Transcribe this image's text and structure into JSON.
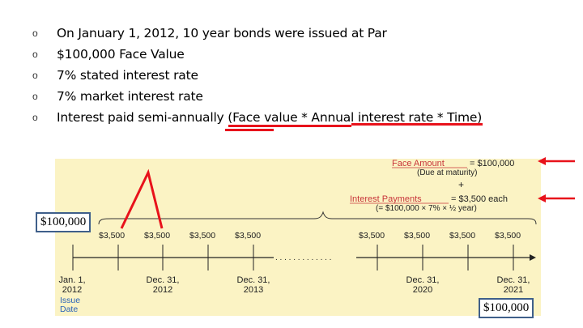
{
  "bullets": [
    {
      "marker": "o",
      "text": "On January 1, 2012, 10 year bonds were issued at Par"
    },
    {
      "marker": "o",
      "text": "$100,000 Face Value"
    },
    {
      "marker": "o",
      "text": "7% stated interest rate"
    },
    {
      "marker": "o",
      "text": "7% market interest rate"
    },
    {
      "marker": "o",
      "text": "Interest paid semi-annually (Face value * Annual interest  rate * Time)"
    }
  ],
  "figure": {
    "face_amount_label": "Face Amount",
    "face_amount_value": "= $100,000",
    "face_amount_note": "(Due at maturity)",
    "plus": "+",
    "interest_label": "Interest Payments",
    "interest_value": "= $3,500 each",
    "interest_formula": "(= $100,000 × 7% × ½ year)",
    "payments_left": [
      "$3,500",
      "$3,500",
      "$3,500",
      "$3,500"
    ],
    "payments_right": [
      "$3,500",
      "$3,500",
      "$3,500",
      "$3,500"
    ],
    "ellipsis": ". . . . . . . . . . . . .",
    "dates": [
      {
        "line1": "Jan. 1,",
        "line2": "2012"
      },
      {
        "line1": "Dec. 31,",
        "line2": "2012"
      },
      {
        "line1": "Dec. 31,",
        "line2": "2013"
      },
      {
        "line1": "Dec. 31,",
        "line2": "2020"
      },
      {
        "line1": "Dec. 31,",
        "line2": "2021"
      }
    ],
    "issue_date_label": "Issue\nDate"
  },
  "callouts": {
    "left_box": "$100,000",
    "right_box": "$100,000"
  },
  "colors": {
    "figure_bg": "#fbf3c4",
    "annotation_red": "#e8121b",
    "figure_red": "#c8353a",
    "issue_blue": "#2a63b8",
    "box_border": "#3f5f8a"
  }
}
